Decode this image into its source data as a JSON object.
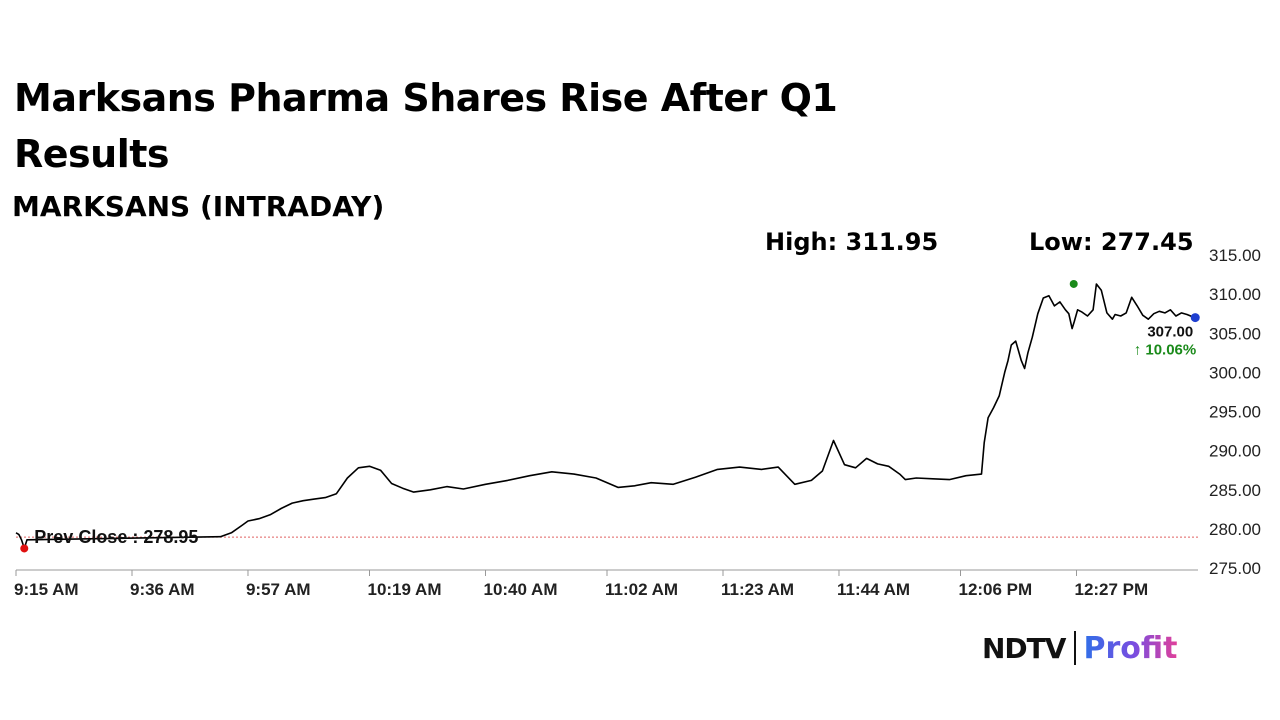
{
  "header": {
    "title": "Marksans Pharma Shares Rise After Q1 Results",
    "subtitle": "MARKSANS (INTRADAY)"
  },
  "stats": {
    "high_label": "High: 311.95",
    "low_label": "Low: 277.45"
  },
  "brand": {
    "name_left": "NDTV",
    "name_right": "Profit"
  },
  "colors": {
    "line": "#000000",
    "prev_close_line": "#e06060",
    "start_dot": "#e01010",
    "high_dot": "#1a8a1a",
    "last_dot": "#1f3fd0",
    "change_text": "#1a8a1a"
  },
  "chart_data": {
    "type": "line",
    "title": "MARKSANS (INTRADAY)",
    "y_ticks": [
      "315.00",
      "310.00",
      "305.00",
      "300.00",
      "295.00",
      "290.00",
      "285.00",
      "280.00",
      "275.00"
    ],
    "ylim": [
      275,
      315
    ],
    "x_tick_labels": [
      "9:15 AM",
      "9:36 AM",
      "9:57 AM",
      "10:19 AM",
      "10:40 AM",
      "11:02 AM",
      "11:23 AM",
      "11:44 AM",
      "12:06 PM",
      "12:27 PM"
    ],
    "x_tick_minutes": [
      555,
      576,
      597,
      619,
      640,
      662,
      683,
      704,
      726,
      747
    ],
    "x_range_minutes": [
      555,
      769
    ],
    "prev_close": 278.95,
    "prev_close_label": "Prev Close : 278.95",
    "last_value_label": "307.00",
    "change_label": "↑ 10.06%",
    "high": {
      "minute": 746.5,
      "value": 311.3
    },
    "last": {
      "minute": 768.5,
      "value": 307.0
    },
    "start": {
      "minute": 556.5,
      "value": 277.5
    },
    "series": [
      {
        "x": [
          555,
          555.5,
          556,
          556.5,
          557,
          592,
          594,
          596,
          597,
          599,
          601,
          603,
          605,
          607,
          609,
          611,
          613,
          615,
          617,
          619,
          621,
          623,
          625,
          627,
          630,
          633,
          636,
          640,
          644,
          648,
          652,
          656,
          660,
          664,
          667,
          670,
          674,
          678,
          682,
          686,
          690,
          693,
          696,
          699,
          701,
          703,
          705,
          707,
          709,
          711,
          713,
          715,
          716,
          718,
          721,
          724,
          727,
          729.8,
          730.3,
          731,
          732,
          733,
          734,
          734.6,
          735.2,
          736,
          737,
          737.6,
          738.2,
          739,
          740,
          741,
          742,
          743,
          744,
          745,
          745.6,
          746.2,
          746.6,
          747.2,
          748,
          749,
          750,
          750.6,
          751.5,
          752.5,
          753.5,
          754,
          755,
          756,
          757,
          758,
          759,
          760,
          761,
          762,
          763,
          764,
          765,
          766,
          767,
          768,
          768.5
        ],
        "y": [
          279.5,
          279.3,
          278.6,
          277.5,
          278.6,
          279.0,
          279.5,
          280.5,
          281.0,
          281.3,
          281.8,
          282.6,
          283.3,
          283.6,
          283.8,
          284.0,
          284.5,
          286.5,
          287.8,
          288.0,
          287.5,
          285.8,
          285.2,
          284.7,
          285.0,
          285.4,
          285.1,
          285.7,
          286.2,
          286.8,
          287.3,
          287.0,
          286.5,
          285.3,
          285.5,
          285.9,
          285.7,
          286.6,
          287.6,
          287.9,
          287.6,
          287.9,
          285.7,
          286.2,
          287.4,
          291.3,
          288.2,
          287.8,
          289.0,
          288.3,
          288.0,
          287.0,
          286.3,
          286.5,
          286.4,
          286.3,
          286.8,
          287.0,
          291.0,
          294.2,
          295.5,
          297.0,
          300.0,
          301.5,
          303.5,
          304.0,
          301.5,
          300.5,
          302.5,
          304.5,
          307.5,
          309.5,
          309.8,
          308.5,
          309.0,
          308.0,
          307.5,
          305.6,
          306.5,
          308.0,
          307.7,
          307.2,
          308.0,
          311.3,
          310.5,
          307.6,
          306.8,
          307.4,
          307.2,
          307.6,
          309.6,
          308.5,
          307.3,
          306.8,
          307.5,
          307.8,
          307.6,
          308.0,
          307.2,
          307.6,
          307.4,
          307.1,
          307.0
        ]
      }
    ],
    "grid": false,
    "legend": "none"
  }
}
